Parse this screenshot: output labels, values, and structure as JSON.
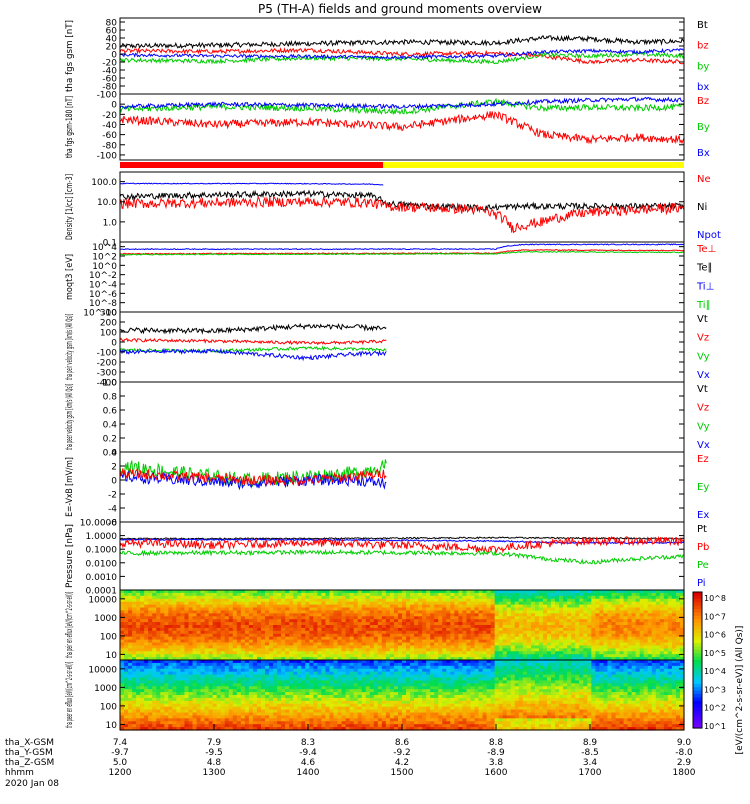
{
  "chart_data": {
    "type": "line",
    "title": "P5 (TH-A) fields and ground moments overview",
    "x_axis": {
      "rows": [
        {
          "label": "tha_X-GSM",
          "values": [
            "7.4",
            "7.9",
            "8.3",
            "8.6",
            "8.8",
            "8.9",
            "9.0"
          ]
        },
        {
          "label": "tha_Y-GSM",
          "values": [
            "-9.7",
            "-9.5",
            "-9.4",
            "-9.2",
            "-8.9",
            "-8.5",
            "-8.0"
          ]
        },
        {
          "label": "tha_Z-GSM",
          "values": [
            "5.0",
            "4.8",
            "4.6",
            "4.2",
            "3.8",
            "3.4",
            "2.9"
          ]
        },
        {
          "label": "hhmm",
          "values": [
            "1200",
            "1300",
            "1400",
            "1500",
            "1600",
            "1700",
            "1800"
          ]
        }
      ],
      "date": "2020 Jan 08",
      "range_minutes": [
        0,
        360
      ]
    },
    "colorbar_label": "[eV/(cm^2-s-sr-eV)] (All Qs)]",
    "colorbar_ticks": [
      "10^8",
      "10^7",
      "10^6",
      "10^5",
      "10^4",
      "10^3",
      "10^2",
      "10^1"
    ],
    "panels": [
      {
        "id": "fgs",
        "ylabel": "tha fgs gsm [nT]",
        "scale": "linear",
        "ylim": [
          -100,
          90
        ],
        "ticks": [
          "80",
          "60",
          "40",
          "20",
          "0",
          "-20",
          "-40",
          "-60",
          "-80",
          "-100"
        ],
        "legend": [
          {
            "text": "Bt",
            "color": "#000000"
          },
          {
            "text": "bz",
            "color": "#ff0000"
          },
          {
            "text": "by",
            "color": "#00cc00"
          },
          {
            "text": "bx",
            "color": "#0000ff"
          }
        ],
        "series": [
          {
            "name": "Bt",
            "color": "#000000",
            "x": [
              0,
              60,
              120,
              180,
              240,
              270,
              300,
              330,
              360
            ],
            "y": [
              20,
              22,
              26,
              30,
              28,
              40,
              38,
              30,
              32
            ],
            "noise": 6
          },
          {
            "name": "bz",
            "color": "#ff0000",
            "x": [
              0,
              60,
              120,
              180,
              240,
              270,
              300,
              330,
              360
            ],
            "y": [
              8,
              6,
              10,
              0,
              2,
              -5,
              -20,
              -15,
              -20
            ],
            "noise": 5
          },
          {
            "name": "by",
            "color": "#00cc00",
            "x": [
              0,
              60,
              120,
              180,
              240,
              270,
              300,
              330,
              360
            ],
            "y": [
              -15,
              -18,
              -10,
              -12,
              -20,
              -2,
              -5,
              0,
              -5
            ],
            "noise": 5
          },
          {
            "name": "bx",
            "color": "#0000ff",
            "x": [
              0,
              60,
              120,
              180,
              240,
              270,
              300,
              330,
              360
            ],
            "y": [
              -2,
              -5,
              -6,
              -8,
              -5,
              5,
              8,
              5,
              10
            ],
            "noise": 4
          }
        ]
      },
      {
        "id": "fgs_gsm180",
        "ylabel": "tha fgs gsm-180 [nT]",
        "scale": "linear",
        "ylim": [
          -110,
          20
        ],
        "ticks": [
          "0",
          "-20",
          "-40",
          "-60",
          "-80",
          "-100"
        ],
        "legend": [
          {
            "text": "Bz",
            "color": "#ff0000"
          },
          {
            "text": "By",
            "color": "#00cc00"
          },
          {
            "text": "Bx",
            "color": "#0000ff"
          }
        ],
        "series": [
          {
            "name": "Bz",
            "color": "#ff0000",
            "x": [
              0,
              60,
              120,
              180,
              240,
              270,
              300,
              330,
              360
            ],
            "y": [
              -30,
              -40,
              -35,
              -45,
              -20,
              -60,
              -70,
              -65,
              -70
            ],
            "noise": 8
          },
          {
            "name": "By",
            "color": "#00cc00",
            "x": [
              0,
              60,
              120,
              180,
              240,
              270,
              300,
              330,
              360
            ],
            "y": [
              -10,
              -5,
              -8,
              -15,
              5,
              -8,
              -6,
              -8,
              -5
            ],
            "noise": 6
          },
          {
            "name": "Bx",
            "color": "#0000ff",
            "x": [
              0,
              60,
              120,
              180,
              240,
              270,
              300,
              330,
              360
            ],
            "y": [
              -5,
              0,
              -2,
              -5,
              0,
              5,
              8,
              10,
              8
            ],
            "noise": 4
          }
        ]
      },
      {
        "id": "density",
        "ylabel": "Density [1/cc] [cm-3]",
        "scale": "log",
        "ylim": [
          0.1,
          300
        ],
        "ticks": [
          "100.0",
          "10.0",
          "1.0",
          "0.1"
        ],
        "tick_values": [
          100,
          10,
          1,
          0.1
        ],
        "legend": [
          {
            "text": "Ne",
            "color": "#ff0000"
          },
          {
            "text": "Ni",
            "color": "#000000"
          },
          {
            "text": "Npot",
            "color": "#0000ff"
          }
        ],
        "series": [
          {
            "name": "Npot",
            "color": "#0000ff",
            "x": [
              0,
              100,
              160,
              168
            ],
            "y": [
              80,
              80,
              75,
              70
            ],
            "noise": 0.02
          },
          {
            "name": "Ni",
            "color": "#000000",
            "x": [
              0,
              60,
              120,
              160,
              170,
              200,
              230,
              260,
              300,
              360
            ],
            "y": [
              18,
              22,
              25,
              20,
              8,
              6,
              5,
              6,
              6,
              6
            ],
            "noise": 0.15
          },
          {
            "name": "Ne",
            "color": "#ff0000",
            "x": [
              0,
              60,
              120,
              160,
              170,
              200,
              230,
              250,
              270,
              300,
              360
            ],
            "y": [
              8,
              9,
              10,
              9,
              6,
              5,
              4,
              0.5,
              1,
              3,
              5
            ],
            "noise": 0.25
          }
        ]
      },
      {
        "id": "temperature",
        "ylabel": "moqt3 [eV]",
        "scale": "log",
        "ylim": [
          1e-10,
          100000
        ],
        "ticks": [
          "10^4",
          "10^2",
          "10^0",
          "10^-2",
          "10^-4",
          "10^-6",
          "10^-8",
          "10^-10"
        ],
        "tick_values": [
          10000,
          100,
          1,
          0.01,
          0.0001,
          1e-06,
          1e-08,
          1e-10
        ],
        "legend": [
          {
            "text": "Te⊥",
            "color": "#ff0000"
          },
          {
            "text": "Te∥",
            "color": "#000000"
          },
          {
            "text": "Ti⊥",
            "color": "#0000ff"
          },
          {
            "text": "Ti∥",
            "color": "#00cc00"
          }
        ],
        "series": [
          {
            "name": "Ti",
            "color": "#0000ff",
            "x": [
              0,
              240,
              260,
              360
            ],
            "y": [
              3000,
              3000,
              30000,
              30000
            ],
            "noise": 0.1
          },
          {
            "name": "Te",
            "color": "#ff0000",
            "x": [
              0,
              240,
              260,
              360
            ],
            "y": [
              300,
              400,
              2000,
              1500
            ],
            "noise": 0.1
          },
          {
            "name": "Ti2",
            "color": "#00cc00",
            "x": [
              0,
              240,
              260,
              360
            ],
            "y": [
              200,
              300,
              800,
              600
            ],
            "noise": 0.1
          }
        ]
      },
      {
        "id": "peir_velocity",
        "ylabel": "tha peir velocity gsm [km/s (All Qs)]",
        "scale": "linear",
        "ylim": [
          -400,
          300
        ],
        "ticks": [
          "300",
          "200",
          "100",
          "0",
          "-100",
          "-200",
          "-300",
          "-400"
        ],
        "legend": [
          {
            "text": "Vt",
            "color": "#000000"
          },
          {
            "text": "Vz",
            "color": "#ff0000"
          },
          {
            "text": "Vy",
            "color": "#00cc00"
          },
          {
            "text": "Vx",
            "color": "#0000ff"
          }
        ],
        "series": [
          {
            "name": "Vt",
            "color": "#000000",
            "x": [
              0,
              60,
              120,
              150,
              170
            ],
            "y": [
              120,
              110,
              160,
              150,
              130
            ],
            "noise": 25
          },
          {
            "name": "Vz",
            "color": "#ff0000",
            "x": [
              0,
              60,
              120,
              150,
              170
            ],
            "y": [
              20,
              10,
              -10,
              -5,
              10
            ],
            "noise": 15
          },
          {
            "name": "Vy",
            "color": "#00cc00",
            "x": [
              0,
              60,
              120,
              150,
              170
            ],
            "y": [
              -80,
              -90,
              -60,
              -70,
              -80
            ],
            "noise": 15
          },
          {
            "name": "Vx",
            "color": "#0000ff",
            "x": [
              0,
              60,
              120,
              150,
              170
            ],
            "y": [
              -100,
              -90,
              -160,
              -120,
              -110
            ],
            "noise": 20
          }
        ]
      },
      {
        "id": "peer_velocity",
        "ylabel": "tha peer velocity gsm [km/s (All Qs)]",
        "scale": "linear",
        "ylim": [
          0,
          1
        ],
        "ticks": [
          "1.0",
          "0.8",
          "0.6",
          "0.4",
          "0.2",
          "0.0"
        ],
        "legend": [
          {
            "text": "Vt",
            "color": "#000000"
          },
          {
            "text": "Vz",
            "color": "#ff0000"
          },
          {
            "text": "Vy",
            "color": "#00cc00"
          },
          {
            "text": "Vx",
            "color": "#0000ff"
          }
        ],
        "series": []
      },
      {
        "id": "efield",
        "ylabel": "E=-VxB [mV/m]",
        "scale": "linear",
        "ylim": [
          -6,
          4
        ],
        "ticks": [
          "4",
          "2",
          "0",
          "-2",
          "-4",
          "-6"
        ],
        "legend": [
          {
            "text": "Ez",
            "color": "#ff0000"
          },
          {
            "text": "Ey",
            "color": "#00cc00"
          },
          {
            "text": "Ex",
            "color": "#0000ff"
          }
        ],
        "series": [
          {
            "name": "Ey",
            "color": "#00cc00",
            "x": [
              0,
              40,
              80,
              120,
              150,
              170
            ],
            "y": [
              2,
              1,
              0,
              0.5,
              1,
              2
            ],
            "noise": 1.0
          },
          {
            "name": "Ex",
            "color": "#0000ff",
            "x": [
              0,
              40,
              80,
              120,
              150,
              170
            ],
            "y": [
              0.5,
              0,
              -0.5,
              0,
              0,
              -0.5
            ],
            "noise": 0.8
          },
          {
            "name": "Ez",
            "color": "#ff0000",
            "x": [
              0,
              40,
              80,
              120,
              150,
              170
            ],
            "y": [
              1,
              0.5,
              0,
              0,
              0.5,
              1
            ],
            "noise": 0.7
          }
        ]
      },
      {
        "id": "pressure",
        "ylabel": "Pressure [nPa]",
        "scale": "log",
        "ylim": [
          0.0001,
          10
        ],
        "ticks": [
          "10.0000",
          "1.0000",
          "0.1000",
          "0.0100",
          "0.0010",
          "0.0001"
        ],
        "tick_values": [
          10,
          1,
          0.1,
          0.01,
          0.001,
          0.0001
        ],
        "legend": [
          {
            "text": "Pt",
            "color": "#000000"
          },
          {
            "text": "Pb",
            "color": "#ff0000"
          },
          {
            "text": "Pe",
            "color": "#00cc00"
          },
          {
            "text": "Pi",
            "color": "#0000ff"
          }
        ],
        "series": [
          {
            "name": "Pt",
            "color": "#000000",
            "x": [
              0,
              120,
              240,
              360
            ],
            "y": [
              0.6,
              0.6,
              0.7,
              0.6
            ],
            "noise": 0.05
          },
          {
            "name": "Pi",
            "color": "#0000ff",
            "x": [
              0,
              120,
              240,
              280,
              360
            ],
            "y": [
              0.5,
              0.5,
              0.4,
              0.3,
              0.3
            ],
            "noise": 0.05
          },
          {
            "name": "Pb",
            "color": "#ff0000",
            "x": [
              0,
              60,
              120,
              240,
              300,
              360
            ],
            "y": [
              0.3,
              0.2,
              0.3,
              0.1,
              0.4,
              0.4
            ],
            "noise": 0.3
          },
          {
            "name": "Pe",
            "color": "#00cc00",
            "x": [
              0,
              120,
              240,
              270,
              300,
              360
            ],
            "y": [
              0.05,
              0.06,
              0.05,
              0.02,
              0.01,
              0.03
            ],
            "noise": 0.15
          }
        ]
      },
      {
        "id": "peir_spec",
        "ylabel": "tha peir en eflux [eV/(cm^2-s-sr-eV)]",
        "type": "heatmap",
        "scale": "log",
        "ylim": [
          5,
          30000
        ],
        "ticks": [
          "10000",
          "1000",
          "100",
          "10"
        ],
        "tick_values": [
          10000,
          1000,
          100,
          10
        ]
      },
      {
        "id": "peer_spec",
        "ylabel": "tha peer en eflux [eV/(cm^2-s-sr-eV)]",
        "type": "heatmap",
        "scale": "log",
        "ylim": [
          5,
          30000
        ],
        "ticks": [
          "10000",
          "1000",
          "100",
          "10"
        ],
        "tick_values": [
          10000,
          1000,
          100,
          10
        ]
      }
    ]
  }
}
